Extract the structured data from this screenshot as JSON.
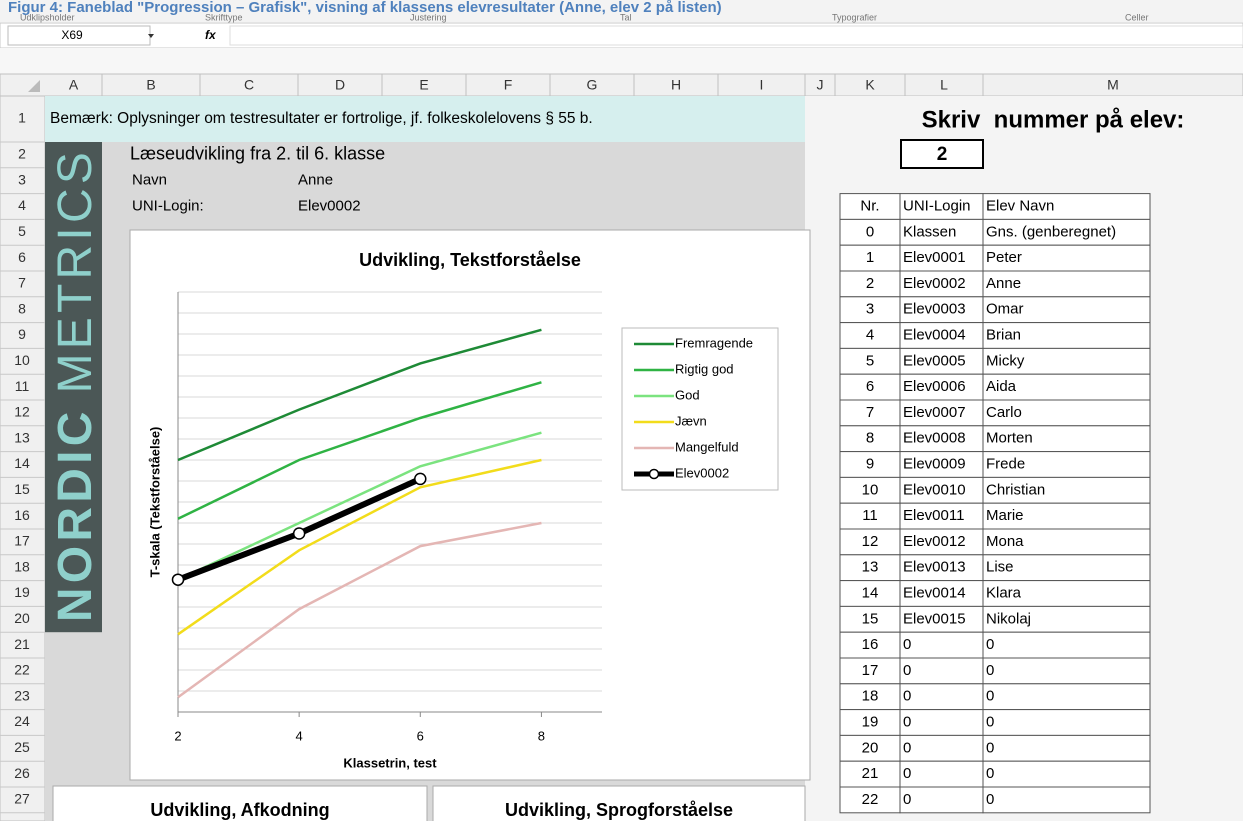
{
  "caption": "Figur 4: Faneblad \"Progression – Grafisk\", visning af klassens elevresultater (Anne, elev 2 på listen)",
  "ribbon_groups": [
    "Udklipsholder",
    "Skrifttype",
    "Justering",
    "Tal",
    "Typografier",
    "Celler"
  ],
  "name_box": "X69",
  "formula_icon": "fx",
  "column_headers": [
    "A",
    "B",
    "C",
    "D",
    "E",
    "F",
    "G",
    "H",
    "I",
    "J",
    "K",
    "L",
    "M"
  ],
  "row_numbers": [
    1,
    2,
    3,
    4,
    5,
    6,
    7,
    8,
    9,
    10,
    11,
    12,
    13,
    14,
    15,
    16,
    17,
    18,
    19,
    20,
    21,
    22,
    23,
    24,
    25,
    26,
    27
  ],
  "cells": {
    "note": "Bemærk: Oplysninger om testresultater er fortrolige, jf. folkeskolelovens § 55 b.",
    "title": "Læseudvikling fra 2. til 6. klasse",
    "name_label": "Navn",
    "name_value": "Anne",
    "login_label": "UNI-Login:",
    "login_value": "Elev0002"
  },
  "logo": [
    "NORDIC",
    "METRICS"
  ],
  "selector": {
    "prompt": "Skriv  nummer på elev:",
    "value": "2"
  },
  "student_table": {
    "header": [
      "Nr.",
      "UNI-Login",
      "Elev Navn"
    ],
    "rows": [
      [
        "0",
        "Klassen",
        "Gns. (genberegnet)"
      ],
      [
        "1",
        "Elev0001",
        "Peter"
      ],
      [
        "2",
        "Elev0002",
        "Anne"
      ],
      [
        "3",
        "Elev0003",
        "Omar"
      ],
      [
        "4",
        "Elev0004",
        "Brian"
      ],
      [
        "5",
        "Elev0005",
        "Micky"
      ],
      [
        "6",
        "Elev0006",
        "Aida"
      ],
      [
        "7",
        "Elev0007",
        "Carlo"
      ],
      [
        "8",
        "Elev0008",
        "Morten"
      ],
      [
        "9",
        "Elev0009",
        "Frede"
      ],
      [
        "10",
        "Elev0010",
        "Christian"
      ],
      [
        "11",
        "Elev0011",
        "Marie"
      ],
      [
        "12",
        "Elev0012",
        "Mona"
      ],
      [
        "13",
        "Elev0013",
        "Lise"
      ],
      [
        "14",
        "Elev0014",
        "Klara"
      ],
      [
        "15",
        "Elev0015",
        "Nikolaj"
      ],
      [
        "16",
        "0",
        "0"
      ],
      [
        "17",
        "0",
        "0"
      ],
      [
        "18",
        "0",
        "0"
      ],
      [
        "19",
        "0",
        "0"
      ],
      [
        "20",
        "0",
        "0"
      ],
      [
        "21",
        "0",
        "0"
      ],
      [
        "22",
        "0",
        "0"
      ]
    ]
  },
  "chart_data": {
    "type": "line",
    "title": "Udvikling, Tekstforståelse",
    "x_label": "Klassetrin, test",
    "y_label": "T-skala (Tekstforståelse)",
    "x": [
      2,
      4,
      6,
      8
    ],
    "xlim": [
      2,
      9
    ],
    "xticks": [
      2,
      4,
      6,
      8
    ],
    "ylim": [
      0,
      20
    ],
    "yticks": [
      0,
      1,
      2,
      3,
      4,
      5,
      6,
      7,
      8,
      9,
      10,
      11,
      12,
      13,
      14,
      15,
      16,
      17,
      18,
      19,
      20
    ],
    "grid": true,
    "legend": "right",
    "series": [
      {
        "name": "Fremragende",
        "color": "#1e8a36",
        "values": [
          12.0,
          14.4,
          16.6,
          18.2
        ]
      },
      {
        "name": "Rigtig god",
        "color": "#2fb344",
        "values": [
          9.2,
          12.0,
          14.0,
          15.7
        ]
      },
      {
        "name": "God",
        "color": "#7be37f",
        "values": [
          6.3,
          9.0,
          11.7,
          13.3
        ]
      },
      {
        "name": "Jævn",
        "color": "#f2dc1b",
        "values": [
          3.7,
          7.7,
          10.7,
          12.0
        ]
      },
      {
        "name": "Mangelfuld",
        "color": "#e4b6b4",
        "values": [
          0.7,
          4.9,
          7.9,
          9.0
        ]
      },
      {
        "name": "Elev0002",
        "color": "#000000",
        "marker": "circle",
        "values": [
          6.3,
          8.5,
          11.1,
          null
        ]
      }
    ]
  },
  "bottom_charts": [
    "Udvikling, Afkodning",
    "Udvikling, Sprogforståelse"
  ]
}
